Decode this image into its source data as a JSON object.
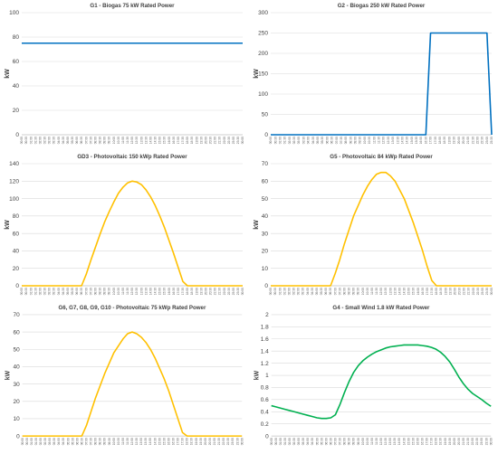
{
  "chart_data": [
    {
      "type": "line",
      "title": "G1 - Biogas 75 kW Rated Power",
      "ylabel": "kW",
      "ylim": [
        0,
        100
      ],
      "yticks": [
        "0",
        "20",
        "40",
        "60",
        "80",
        "100"
      ],
      "grid": true,
      "color": "#0070c0",
      "x": [
        "00:00",
        "00:30",
        "01:00",
        "01:30",
        "02:00",
        "02:30",
        "03:00",
        "03:30",
        "04:00",
        "04:30",
        "05:00",
        "05:30",
        "06:00",
        "06:30",
        "07:00",
        "07:30",
        "08:00",
        "08:30",
        "09:00",
        "09:30",
        "10:00",
        "10:30",
        "11:00",
        "11:30",
        "12:00",
        "12:30",
        "13:00",
        "13:30",
        "14:00",
        "14:30",
        "15:00",
        "15:30",
        "16:00",
        "16:30",
        "17:00",
        "17:30",
        "18:00",
        "18:30",
        "19:00",
        "19:30",
        "20:00",
        "20:30",
        "21:00",
        "21:30",
        "22:00",
        "22:30",
        "23:00",
        "23:30",
        "00:00"
      ],
      "series": [
        {
          "values": [
            75,
            75,
            75,
            75,
            75,
            75,
            75,
            75,
            75,
            75,
            75,
            75,
            75,
            75,
            75,
            75,
            75,
            75,
            75,
            75,
            75,
            75,
            75,
            75,
            75,
            75,
            75,
            75,
            75,
            75,
            75,
            75,
            75,
            75,
            75,
            75,
            75,
            75,
            75,
            75,
            75,
            75,
            75,
            75,
            75,
            75,
            75,
            75,
            75
          ]
        }
      ]
    },
    {
      "type": "line",
      "title": "G2 - Biogas 250 kW Rated Power",
      "ylabel": "kW",
      "ylim": [
        0,
        300
      ],
      "yticks": [
        "0",
        "50",
        "100",
        "150",
        "200",
        "250",
        "300"
      ],
      "grid": true,
      "color": "#0070c0",
      "x": [
        "00:00",
        "00:30",
        "01:00",
        "01:30",
        "02:00",
        "02:30",
        "03:00",
        "03:30",
        "04:00",
        "04:30",
        "05:00",
        "05:30",
        "06:00",
        "06:30",
        "07:00",
        "07:30",
        "08:00",
        "08:30",
        "09:00",
        "09:30",
        "10:00",
        "10:30",
        "11:00",
        "11:30",
        "12:00",
        "12:30",
        "13:00",
        "13:30",
        "14:00",
        "14:30",
        "15:00",
        "15:30",
        "16:00",
        "16:30",
        "17:00",
        "17:30",
        "18:00",
        "18:30",
        "19:00",
        "19:30",
        "20:00",
        "20:30",
        "21:00",
        "21:30",
        "22:00",
        "22:30",
        "23:00",
        "23:30"
      ],
      "series": [
        {
          "values": [
            0,
            0,
            0,
            0,
            0,
            0,
            0,
            0,
            0,
            0,
            0,
            0,
            0,
            0,
            0,
            0,
            0,
            0,
            0,
            0,
            0,
            0,
            0,
            0,
            0,
            0,
            0,
            0,
            0,
            0,
            0,
            0,
            0,
            0,
            250,
            250,
            250,
            250,
            250,
            250,
            250,
            250,
            250,
            250,
            250,
            250,
            250,
            0
          ]
        }
      ]
    },
    {
      "type": "line",
      "title": "GD3 - Photovoltaic 150 kWp Rated Power",
      "ylabel": "kW",
      "ylim": [
        0,
        140
      ],
      "yticks": [
        "0",
        "20",
        "40",
        "60",
        "80",
        "100",
        "120",
        "140"
      ],
      "grid": true,
      "color": "#ffc000",
      "x": [
        "00:00",
        "00:30",
        "01:00",
        "01:30",
        "02:00",
        "02:30",
        "03:00",
        "03:30",
        "04:00",
        "04:30",
        "05:00",
        "05:30",
        "06:00",
        "06:30",
        "07:00",
        "07:30",
        "08:00",
        "08:30",
        "09:00",
        "09:30",
        "10:00",
        "10:30",
        "11:00",
        "11:30",
        "12:00",
        "12:30",
        "13:00",
        "13:30",
        "14:00",
        "14:30",
        "15:00",
        "15:30",
        "16:00",
        "16:30",
        "17:00",
        "17:30",
        "18:00",
        "18:30",
        "19:00",
        "19:30",
        "20:00",
        "20:30",
        "21:00",
        "21:30",
        "22:00",
        "22:30",
        "23:00",
        "23:30",
        "00:00"
      ],
      "series": [
        {
          "values": [
            0,
            0,
            0,
            0,
            0,
            0,
            0,
            0,
            0,
            0,
            0,
            0,
            0,
            0,
            13,
            29,
            44,
            59,
            73,
            85,
            96,
            106,
            113,
            118,
            120,
            119,
            116,
            110,
            102,
            92,
            80,
            67,
            52,
            37,
            21,
            5,
            0,
            0,
            0,
            0,
            0,
            0,
            0,
            0,
            0,
            0,
            0,
            0,
            0
          ]
        }
      ]
    },
    {
      "type": "line",
      "title": "G5 - Photovoltaic 84 kWp Rated Power",
      "ylabel": "kW",
      "ylim": [
        0,
        70
      ],
      "yticks": [
        "0",
        "10",
        "20",
        "30",
        "40",
        "50",
        "60",
        "70"
      ],
      "grid": true,
      "color": "#ffc000",
      "x": [
        "00:00",
        "00:30",
        "01:00",
        "01:30",
        "02:00",
        "02:30",
        "03:00",
        "03:30",
        "04:00",
        "04:30",
        "05:00",
        "05:30",
        "06:00",
        "06:30",
        "07:00",
        "07:30",
        "08:00",
        "08:30",
        "09:00",
        "09:30",
        "10:00",
        "10:30",
        "11:00",
        "11:30",
        "12:00",
        "12:30",
        "13:00",
        "13:30",
        "14:00",
        "14:30",
        "15:00",
        "15:30",
        "16:00",
        "16:30",
        "17:00",
        "17:30",
        "18:00",
        "18:30",
        "19:00",
        "19:30",
        "20:00",
        "20:30",
        "21:00",
        "21:30",
        "22:00",
        "22:30",
        "23:00",
        "23:30",
        "00:00"
      ],
      "series": [
        {
          "values": [
            0,
            0,
            0,
            0,
            0,
            0,
            0,
            0,
            0,
            0,
            0,
            0,
            0,
            0,
            7,
            15,
            24,
            32,
            40,
            46,
            52,
            57,
            61,
            64,
            65,
            65,
            63,
            60,
            55,
            50,
            43,
            36,
            28,
            20,
            11,
            3,
            0,
            0,
            0,
            0,
            0,
            0,
            0,
            0,
            0,
            0,
            0,
            0,
            0
          ]
        }
      ]
    },
    {
      "type": "line",
      "title": "G6, G7, G8, G9, G10 - Photovoltaic 75 kWp Rated Power",
      "ylabel": "kW",
      "ylim": [
        0,
        70
      ],
      "yticks": [
        "0",
        "10",
        "20",
        "30",
        "40",
        "50",
        "60",
        "70"
      ],
      "grid": true,
      "color": "#ffc000",
      "x": [
        "00:00",
        "00:30",
        "01:00",
        "01:30",
        "02:00",
        "02:30",
        "03:00",
        "03:30",
        "04:00",
        "04:30",
        "05:00",
        "05:30",
        "06:00",
        "06:30",
        "07:00",
        "07:30",
        "08:00",
        "08:30",
        "09:00",
        "09:30",
        "10:00",
        "10:30",
        "11:00",
        "11:30",
        "12:00",
        "12:30",
        "13:00",
        "13:30",
        "14:00",
        "14:30",
        "15:00",
        "15:30",
        "16:00",
        "16:30",
        "17:00",
        "17:30",
        "18:00",
        "18:30",
        "19:00",
        "19:30",
        "20:00",
        "20:30",
        "21:00",
        "21:30",
        "22:00",
        "22:30",
        "23:00",
        "23:30",
        "00:00"
      ],
      "series": [
        {
          "values": [
            0,
            0,
            0,
            0,
            0,
            0,
            0,
            0,
            0,
            0,
            0,
            0,
            0,
            0,
            6,
            14,
            22,
            29,
            36,
            42,
            48,
            52,
            56,
            59,
            60,
            59,
            57,
            54,
            50,
            45,
            39,
            33,
            26,
            18,
            10,
            2,
            0,
            0,
            0,
            0,
            0,
            0,
            0,
            0,
            0,
            0,
            0,
            0,
            0
          ]
        }
      ]
    },
    {
      "type": "line",
      "title": "G4 - Small Wind 1.8 kW Rated Power",
      "ylabel": "kW",
      "ylim": [
        0,
        2
      ],
      "yticks": [
        "0",
        "0.2",
        "0.4",
        "0.6",
        "0.8",
        "1",
        "1.2",
        "1.4",
        "1.6",
        "1.8",
        "2"
      ],
      "grid": true,
      "color": "#00b050",
      "x": [
        "00:00",
        "00:30",
        "01:00",
        "01:30",
        "02:00",
        "02:30",
        "03:00",
        "03:30",
        "04:00",
        "04:30",
        "05:00",
        "05:30",
        "06:00",
        "06:30",
        "07:00",
        "07:30",
        "08:00",
        "08:30",
        "09:00",
        "09:30",
        "10:00",
        "10:30",
        "11:00",
        "11:30",
        "12:00",
        "12:30",
        "13:00",
        "13:30",
        "14:00",
        "14:30",
        "15:00",
        "15:30",
        "16:00",
        "16:30",
        "17:00",
        "17:30",
        "18:00",
        "18:30",
        "19:00",
        "19:30",
        "20:00",
        "20:30",
        "21:00",
        "21:30",
        "22:00",
        "22:30",
        "23:00",
        "23:30",
        "00:00"
      ],
      "series": [
        {
          "values": [
            0.5,
            0.48,
            0.46,
            0.44,
            0.42,
            0.4,
            0.38,
            0.36,
            0.34,
            0.32,
            0.3,
            0.29,
            0.29,
            0.3,
            0.35,
            0.52,
            0.72,
            0.9,
            1.05,
            1.16,
            1.24,
            1.3,
            1.35,
            1.39,
            1.42,
            1.45,
            1.47,
            1.48,
            1.49,
            1.5,
            1.5,
            1.5,
            1.5,
            1.49,
            1.48,
            1.46,
            1.43,
            1.38,
            1.31,
            1.22,
            1.1,
            0.97,
            0.86,
            0.77,
            0.7,
            0.65,
            0.6,
            0.54,
            0.49
          ]
        }
      ]
    }
  ]
}
